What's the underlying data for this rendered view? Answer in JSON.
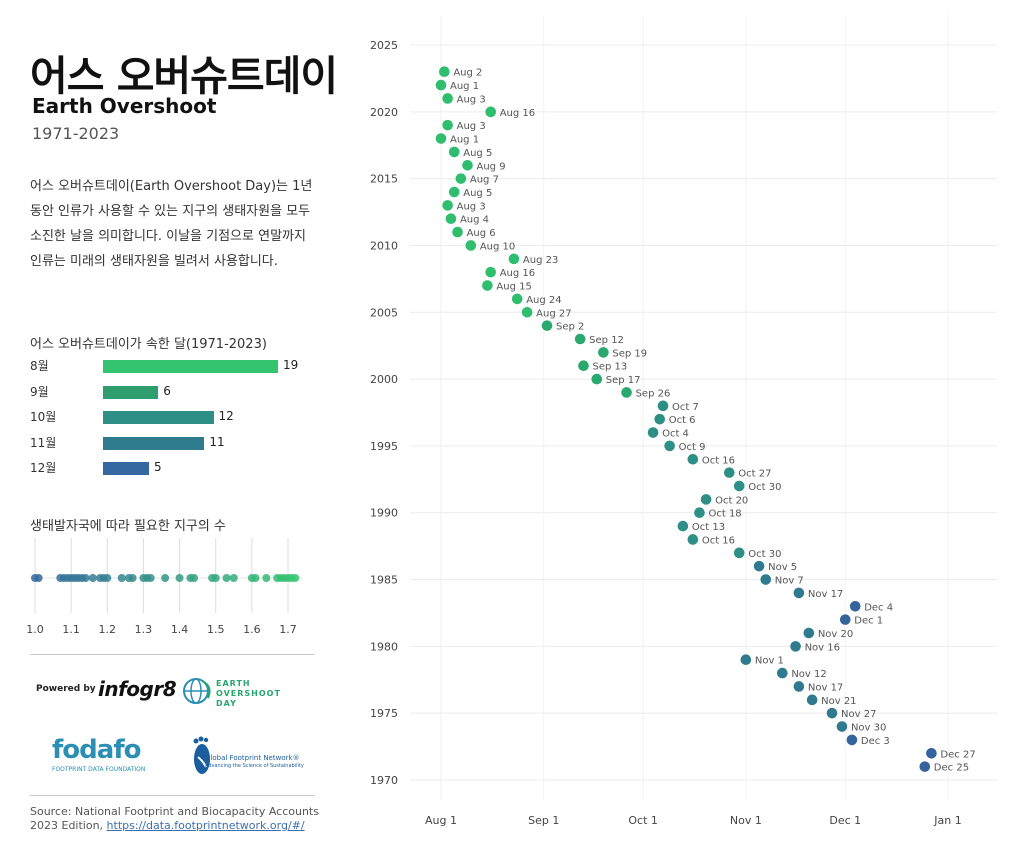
{
  "header": {
    "title": "어스 오버슈트데이",
    "subtitle": "Earth Overshoot",
    "years": "1971-2023",
    "description": "어스 오버슈트데이(Earth Overshoot Day)는 1년 동안 인류가 사용할 수 있는 지구의 생태자원을 모두 소진한 날을 의미합니다. 이날을 기점으로 연말까지 인류는 미래의 생태자원을 빌려서 사용합니다."
  },
  "month_section": {
    "title": "어스 오버슈트데이가 속한 달(1971-2023)",
    "bars": [
      {
        "label": "8월",
        "value": 19,
        "color": "#34c46f"
      },
      {
        "label": "9월",
        "value": 6,
        "color": "#2f9e6e"
      },
      {
        "label": "10월",
        "value": 12,
        "color": "#2e8f86"
      },
      {
        "label": "11월",
        "value": 11,
        "color": "#2f7c8f"
      },
      {
        "label": "12월",
        "value": 5,
        "color": "#3568a0"
      }
    ]
  },
  "earths_section": {
    "title": "생태발자국에 따라 필요한 지구의 수",
    "ticks": [
      "1.0",
      "1.1",
      "1.2",
      "1.3",
      "1.4",
      "1.5",
      "1.6",
      "1.7"
    ],
    "values": [
      1.0,
      1.01,
      1.07,
      1.08,
      1.09,
      1.1,
      1.11,
      1.12,
      1.13,
      1.14,
      1.16,
      1.18,
      1.19,
      1.2,
      1.24,
      1.26,
      1.27,
      1.3,
      1.31,
      1.32,
      1.36,
      1.4,
      1.43,
      1.44,
      1.49,
      1.5,
      1.53,
      1.55,
      1.6,
      1.61,
      1.64,
      1.67,
      1.68,
      1.69,
      1.7,
      1.71,
      1.72
    ]
  },
  "logos": {
    "powered_by": "Powered by",
    "infogram": "infogr8",
    "eod_line1": "EARTH",
    "eod_line2": "OVERSHOOT",
    "eod_line3": "DAY",
    "fodafo": "fodafo",
    "fodafo_sub": "FOOTPRINT DATA FOUNDATION",
    "gfn_line1": "Global Footprint Network®",
    "gfn_line2": "Advancing the Science of Sustainability"
  },
  "source": {
    "text": "Source: National Footprint and Biocapacity Accounts 2023 Edition,",
    "link": "https://data.footprintnetwork.org/#/"
  },
  "colors": {
    "green": "#34c46f",
    "teal": "#2e8f86",
    "blue": "#3568a0"
  },
  "chart_data": {
    "type": "scatter",
    "x_ticks": [
      "Aug 1",
      "Sep 1",
      "Oct 1",
      "Nov 1",
      "Dec 1",
      "Jan 1"
    ],
    "y_ticks": [
      2025,
      2020,
      2015,
      2010,
      2005,
      2000,
      1995,
      1990,
      1985,
      1980,
      1975,
      1970
    ],
    "ylim": [
      1970,
      2025
    ],
    "xlim": [
      "Jul 20",
      "Jan 15"
    ],
    "grid": true,
    "points": [
      {
        "year": 2023,
        "date": "Aug 2"
      },
      {
        "year": 2022,
        "date": "Aug 1"
      },
      {
        "year": 2021,
        "date": "Aug 3"
      },
      {
        "year": 2020,
        "date": "Aug 16"
      },
      {
        "year": 2019,
        "date": "Aug 3"
      },
      {
        "year": 2018,
        "date": "Aug 1"
      },
      {
        "year": 2017,
        "date": "Aug 5"
      },
      {
        "year": 2016,
        "date": "Aug 9"
      },
      {
        "year": 2015,
        "date": "Aug 7"
      },
      {
        "year": 2014,
        "date": "Aug 5"
      },
      {
        "year": 2013,
        "date": "Aug 3"
      },
      {
        "year": 2012,
        "date": "Aug 4"
      },
      {
        "year": 2011,
        "date": "Aug 6"
      },
      {
        "year": 2010,
        "date": "Aug 10"
      },
      {
        "year": 2009,
        "date": "Aug 23"
      },
      {
        "year": 2008,
        "date": "Aug 16"
      },
      {
        "year": 2007,
        "date": "Aug 15"
      },
      {
        "year": 2006,
        "date": "Aug 24"
      },
      {
        "year": 2005,
        "date": "Aug 27"
      },
      {
        "year": 2004,
        "date": "Sep 2"
      },
      {
        "year": 2003,
        "date": "Sep 12"
      },
      {
        "year": 2002,
        "date": "Sep 19"
      },
      {
        "year": 2001,
        "date": "Sep 13"
      },
      {
        "year": 2000,
        "date": "Sep 17"
      },
      {
        "year": 1999,
        "date": "Sep 26"
      },
      {
        "year": 1998,
        "date": "Oct 7"
      },
      {
        "year": 1997,
        "date": "Oct 6"
      },
      {
        "year": 1996,
        "date": "Oct 4"
      },
      {
        "year": 1995,
        "date": "Oct 9"
      },
      {
        "year": 1994,
        "date": "Oct 16"
      },
      {
        "year": 1993,
        "date": "Oct 27"
      },
      {
        "year": 1992,
        "date": "Oct 30"
      },
      {
        "year": 1991,
        "date": "Oct 20"
      },
      {
        "year": 1990,
        "date": "Oct 18"
      },
      {
        "year": 1989,
        "date": "Oct 13"
      },
      {
        "year": 1988,
        "date": "Oct 16"
      },
      {
        "year": 1987,
        "date": "Oct 30"
      },
      {
        "year": 1986,
        "date": "Nov 5"
      },
      {
        "year": 1985,
        "date": "Nov 7"
      },
      {
        "year": 1984,
        "date": "Nov 17"
      },
      {
        "year": 1983,
        "date": "Dec 4"
      },
      {
        "year": 1982,
        "date": "Dec 1"
      },
      {
        "year": 1981,
        "date": "Nov 20"
      },
      {
        "year": 1980,
        "date": "Nov 16"
      },
      {
        "year": 1979,
        "date": "Nov 1"
      },
      {
        "year": 1978,
        "date": "Nov 12"
      },
      {
        "year": 1977,
        "date": "Nov 17"
      },
      {
        "year": 1976,
        "date": "Nov 21"
      },
      {
        "year": 1975,
        "date": "Nov 27"
      },
      {
        "year": 1974,
        "date": "Nov 30"
      },
      {
        "year": 1973,
        "date": "Dec 3"
      },
      {
        "year": 1972,
        "date": "Dec 27"
      },
      {
        "year": 1971,
        "date": "Dec 25"
      }
    ]
  }
}
